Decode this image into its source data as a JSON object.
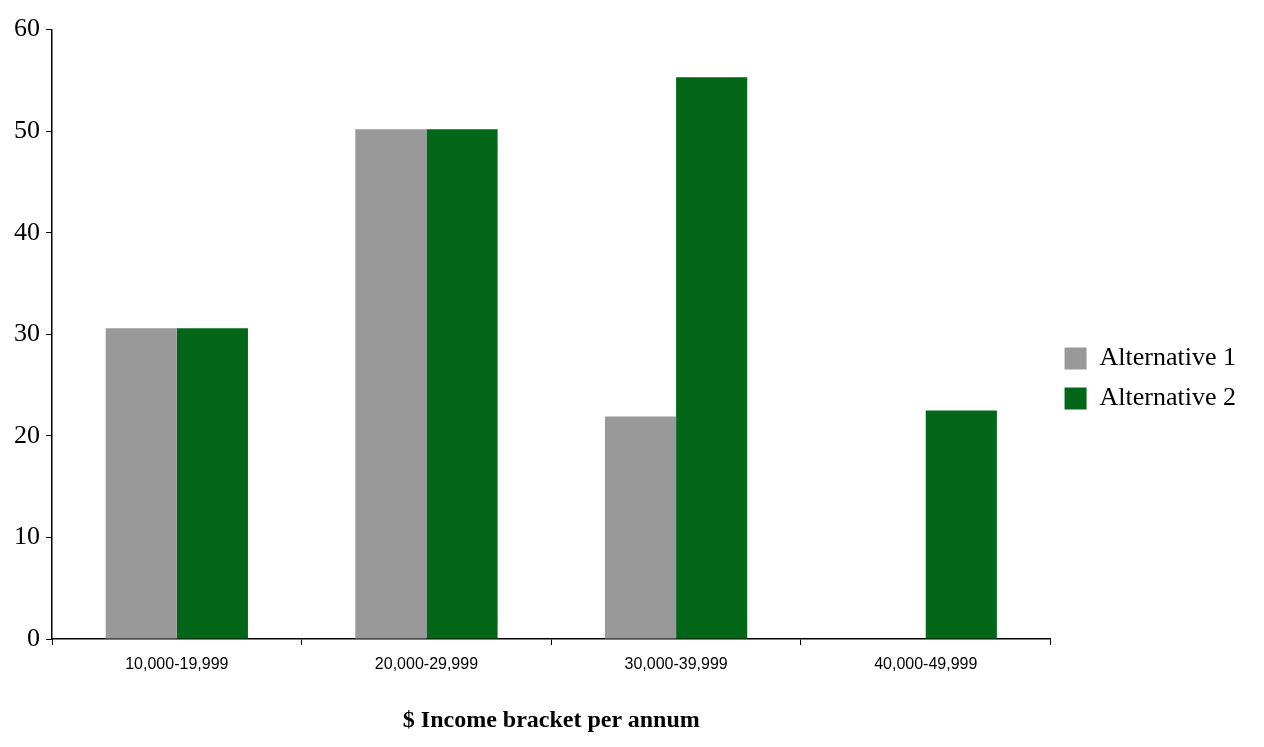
{
  "chart_data": {
    "type": "bar",
    "xlabel": "$ Income bracket per annum",
    "categories": [
      "10,000-19,999",
      "20,000-29,999",
      "30,000-39,999",
      "40,000-49,999"
    ],
    "series": [
      {
        "name": "Alternative 1",
        "color": "#999999",
        "values": [
          30.6,
          50.2,
          21.9,
          null
        ]
      },
      {
        "name": "Alternative 2",
        "color": "#036618",
        "values": [
          30.6,
          50.2,
          55.3,
          22.5
        ]
      }
    ],
    "ylim": [
      0,
      60
    ],
    "yticks": [
      0,
      10,
      20,
      30,
      40,
      50,
      60
    ],
    "grid": false,
    "legend": "right"
  }
}
